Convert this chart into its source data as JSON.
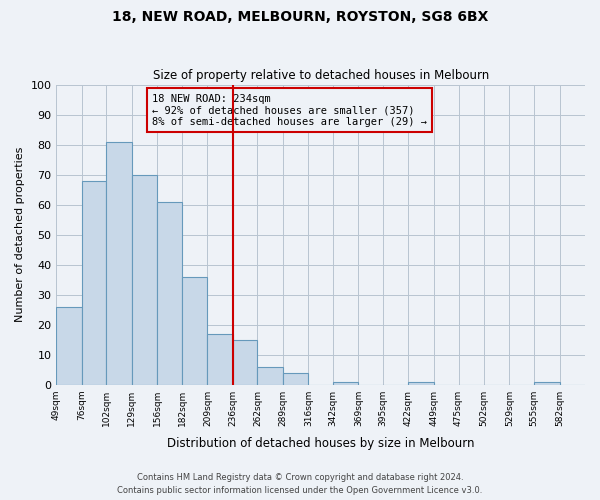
{
  "title": "18, NEW ROAD, MELBOURN, ROYSTON, SG8 6BX",
  "subtitle": "Size of property relative to detached houses in Melbourn",
  "xlabel": "Distribution of detached houses by size in Melbourn",
  "ylabel": "Number of detached properties",
  "bin_labels": [
    "49sqm",
    "76sqm",
    "102sqm",
    "129sqm",
    "156sqm",
    "182sqm",
    "209sqm",
    "236sqm",
    "262sqm",
    "289sqm",
    "316sqm",
    "342sqm",
    "369sqm",
    "395sqm",
    "422sqm",
    "449sqm",
    "475sqm",
    "502sqm",
    "529sqm",
    "555sqm",
    "582sqm"
  ],
  "bin_edges": [
    49,
    76,
    102,
    129,
    156,
    182,
    209,
    236,
    262,
    289,
    316,
    342,
    369,
    395,
    422,
    449,
    475,
    502,
    529,
    555,
    582,
    609
  ],
  "bar_heights": [
    26,
    68,
    81,
    70,
    61,
    36,
    17,
    15,
    6,
    4,
    0,
    1,
    0,
    0,
    1,
    0,
    0,
    0,
    0,
    1,
    0
  ],
  "bar_color": "#c8d8e8",
  "bar_edge_color": "#6699bb",
  "reference_line_x": 236,
  "reference_line_color": "#cc0000",
  "annotation_text": "18 NEW ROAD: 234sqm\n← 92% of detached houses are smaller (357)\n8% of semi-detached houses are larger (29) →",
  "annotation_box_edge_color": "#cc0000",
  "ylim": [
    0,
    100
  ],
  "yticks": [
    0,
    10,
    20,
    30,
    40,
    50,
    60,
    70,
    80,
    90,
    100
  ],
  "background_color": "#eef2f7",
  "footer_line1": "Contains HM Land Registry data © Crown copyright and database right 2024.",
  "footer_line2": "Contains public sector information licensed under the Open Government Licence v3.0."
}
